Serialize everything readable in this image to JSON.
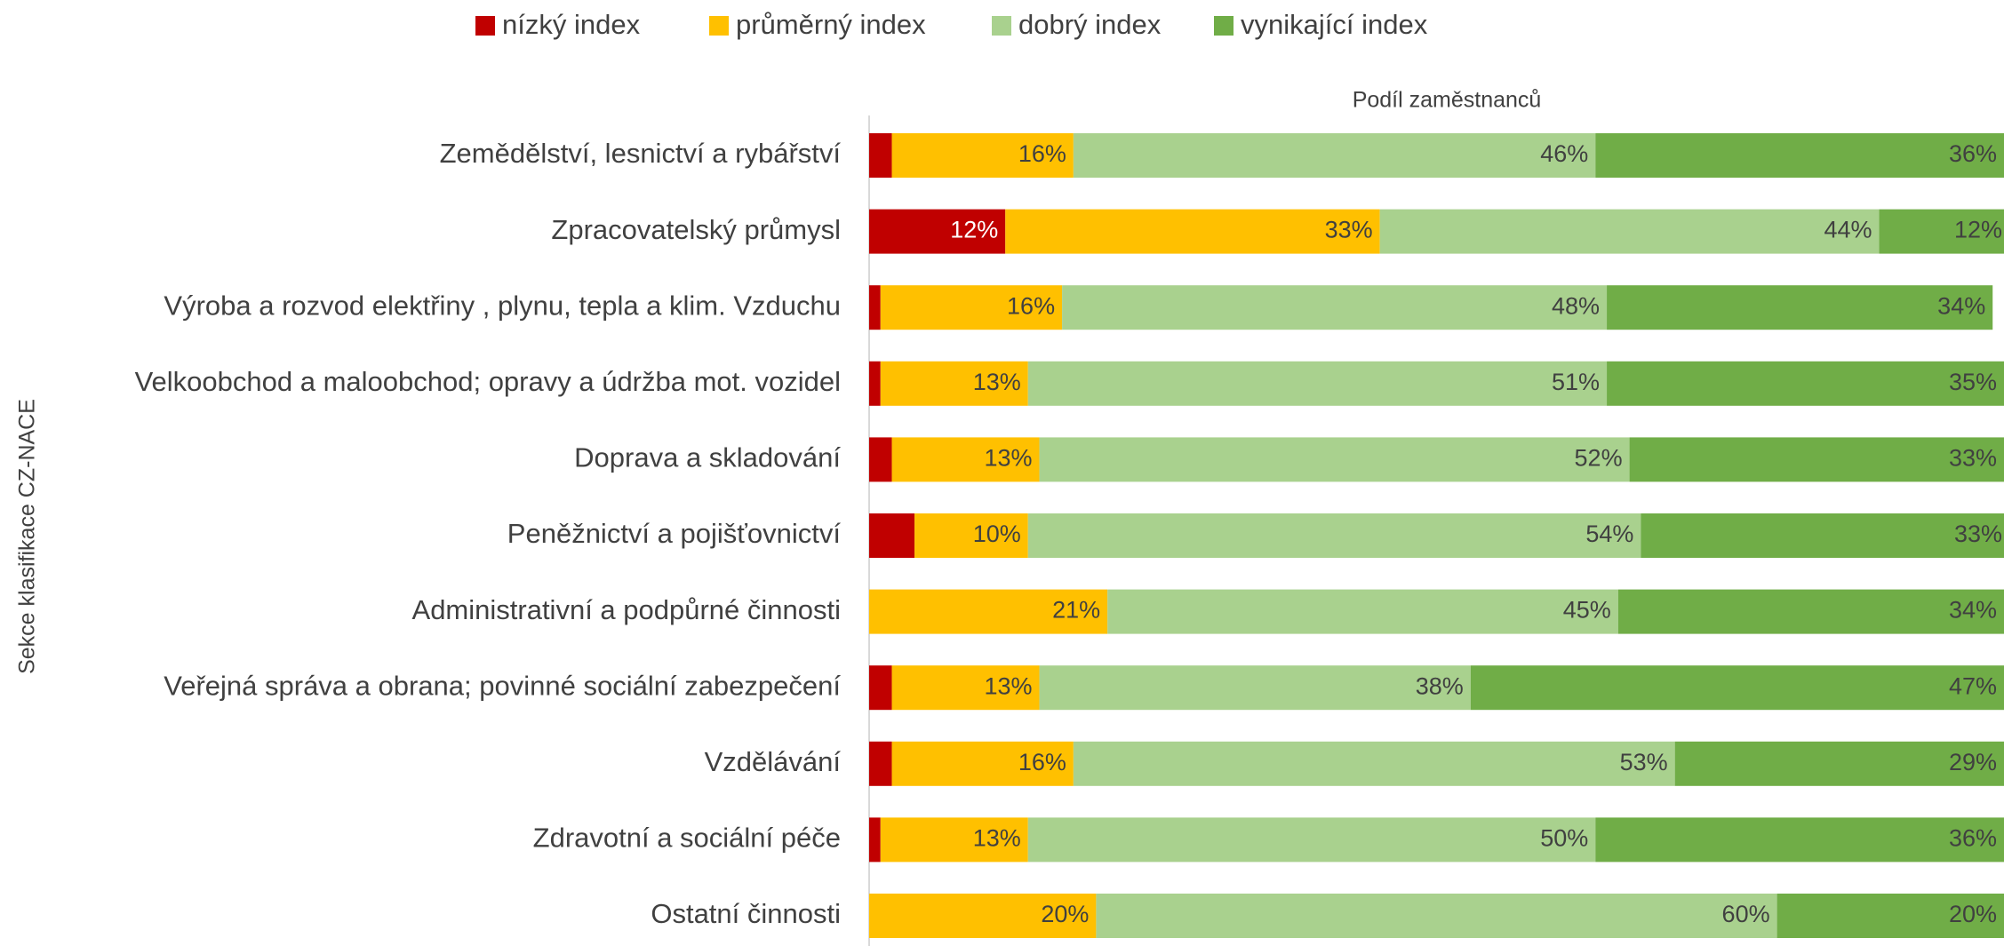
{
  "chart_data": {
    "type": "stacked_bar_horizontal",
    "x_label": "Podíl zaměstnanců",
    "y_label": "Sekce klasifikace CZ-NACE",
    "legend": "top",
    "xlim": [
      0,
      100
    ],
    "categories": [
      "Zemědělství, lesnictví a rybářství",
      "Zpracovatelský průmysl",
      "Výroba a rozvod elektřiny , plynu, tepla a klim. Vzduchu",
      "Velkoobchod a maloobchod; opravy a údržba mot.  vozidel",
      "Doprava a skladování",
      "Peněžnictví a pojišťovnictví",
      "Administrativní a podpůrné činnosti",
      "Veřejná správa a obrana; povinné sociální zabezpečení",
      "Vzdělávání",
      "Zdravotní a sociální péče",
      "Ostatní činnosti"
    ],
    "series": [
      {
        "name": "nízký index",
        "color": "#c00000",
        "values": [
          2,
          12,
          1,
          1,
          2,
          4,
          null,
          2,
          2,
          1,
          null
        ],
        "value_labels": [
          "2%",
          "12%",
          "1%",
          "1%",
          "2%",
          "4%",
          null,
          "2%",
          "2%",
          "1%",
          null
        ]
      },
      {
        "name": "průměrný index",
        "color": "#ffc000",
        "values": [
          16,
          33,
          16,
          13,
          13,
          10,
          21,
          13,
          16,
          13,
          20
        ],
        "value_labels": [
          "16%",
          "33%",
          "16%",
          "13%",
          "13%",
          "10%",
          "21%",
          "13%",
          "16%",
          "13%",
          "20%"
        ]
      },
      {
        "name": "dobrý index",
        "color": "#a9d18e",
        "values": [
          46,
          44,
          48,
          51,
          52,
          54,
          45,
          38,
          53,
          50,
          60
        ],
        "value_labels": [
          "46%",
          "44%",
          "48%",
          "51%",
          "52%",
          "54%",
          "45%",
          "38%",
          "53%",
          "50%",
          "60%"
        ]
      },
      {
        "name": "vynikající index",
        "color": "#70ad47",
        "values": [
          36,
          12,
          34,
          35,
          33,
          33,
          34,
          47,
          29,
          36,
          20
        ],
        "value_labels": [
          "36%",
          "12%",
          "34%",
          "35%",
          "33%",
          "33%",
          "34%",
          "47%",
          "29%",
          "36%",
          "20%"
        ]
      }
    ]
  }
}
